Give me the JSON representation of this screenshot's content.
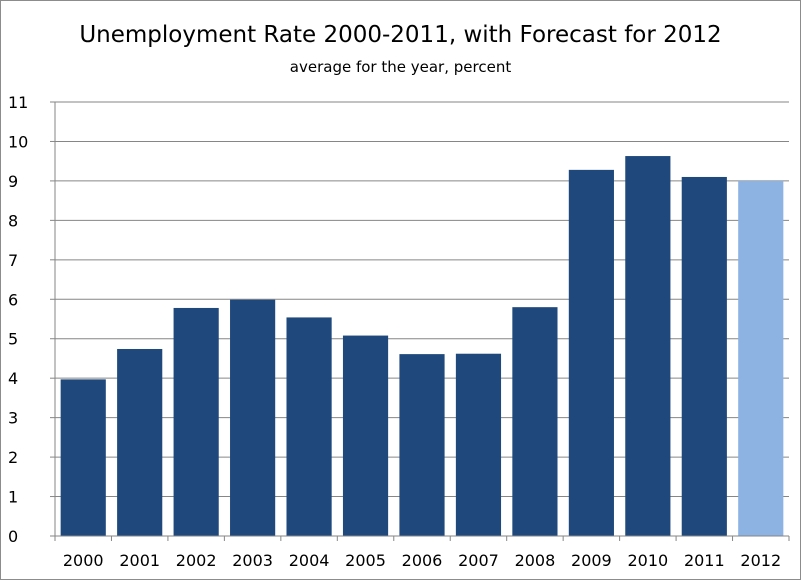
{
  "chart_data": {
    "type": "bar",
    "title": "Unemployment Rate 2000-2011, with Forecast for 2012",
    "subtitle": "average for the year, percent",
    "xlabel": "",
    "ylabel": "",
    "categories": [
      "2000",
      "2001",
      "2002",
      "2003",
      "2004",
      "2005",
      "2006",
      "2007",
      "2008",
      "2009",
      "2010",
      "2011",
      "2012"
    ],
    "values": [
      3.97,
      4.74,
      5.78,
      5.99,
      5.54,
      5.08,
      4.61,
      4.62,
      5.8,
      9.28,
      9.63,
      9.1,
      9.0
    ],
    "ylim": [
      0,
      11
    ],
    "yticks": [
      0,
      1,
      2,
      3,
      4,
      5,
      6,
      7,
      8,
      9,
      10,
      11
    ],
    "grid": true,
    "legend": "none",
    "colors": {
      "actual": "#1f497d",
      "forecast": "#8db3e2",
      "grid": "#868686",
      "axis": "#868686"
    },
    "forecast_categories": [
      "2012"
    ]
  }
}
